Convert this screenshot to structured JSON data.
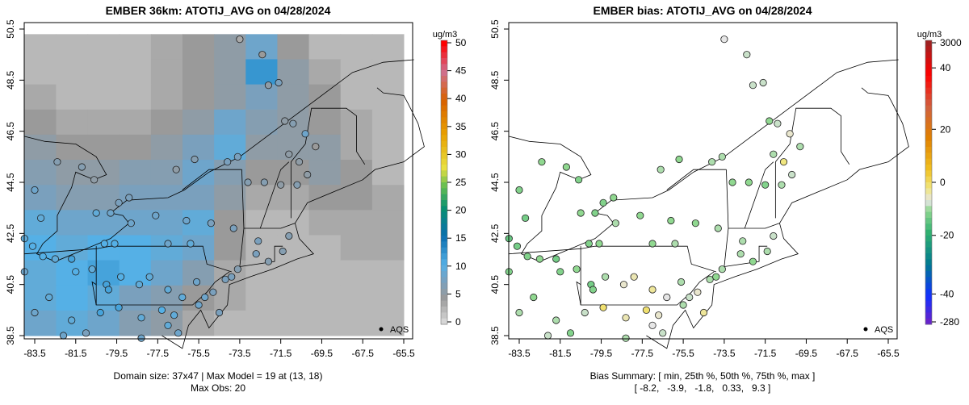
{
  "chart_data": [
    {
      "type": "heatmap",
      "title": "EMBER 36km: ATOTIJ_AVG on 04/28/2024",
      "colorbar": {
        "label": "ug/m3",
        "ticks": [
          "0",
          "5",
          "10",
          "15",
          "20",
          "25",
          "30",
          "35",
          "40",
          "45",
          "50"
        ],
        "range": [
          0,
          50
        ]
      },
      "x_ticks": [
        "-83.5",
        "-81.5",
        "-79.5",
        "-77.5",
        "-75.5",
        "-73.5",
        "-71.5",
        "-69.5",
        "-67.5",
        "-65.5"
      ],
      "y_ticks": [
        "38.5",
        "40.5",
        "42.5",
        "44.5",
        "46.5",
        "48.5",
        "50.5"
      ],
      "xlim": [
        -84,
        -65.2
      ],
      "ylim": [
        38.3,
        50.6
      ],
      "legend": {
        "label": "AQS",
        "placement": "bottom-right"
      },
      "footer": [
        "Domain size: 37x47 | Max Model = 19 at (13, 18)",
        "Max Obs: 20"
      ],
      "grid_lon_range": [
        -84,
        -65.5
      ],
      "grid_lat_range": [
        38.5,
        50.3
      ],
      "grid_values": [
        [
          3,
          3,
          3,
          3,
          4,
          5,
          6,
          9,
          5,
          3,
          3,
          3
        ],
        [
          3,
          3,
          3,
          3,
          4,
          5,
          6,
          13,
          6,
          4,
          3,
          3
        ],
        [
          4,
          3,
          3,
          3,
          4,
          5,
          6,
          8,
          6,
          5,
          3,
          3
        ],
        [
          5,
          4,
          4,
          4,
          5,
          6,
          9,
          7,
          6,
          5,
          4,
          3
        ],
        [
          6,
          5,
          5,
          5,
          6,
          8,
          10,
          6,
          6,
          6,
          4,
          3
        ],
        [
          7,
          6,
          6,
          7,
          7,
          9,
          7,
          5,
          5,
          6,
          5,
          3
        ],
        [
          8,
          7,
          7,
          8,
          8,
          8,
          6,
          4,
          4,
          5,
          5,
          4
        ],
        [
          10,
          9,
          9,
          9,
          9,
          10,
          5,
          3,
          3,
          4,
          4,
          4
        ],
        [
          11,
          10,
          11,
          11,
          10,
          9,
          5,
          3,
          3,
          3,
          4,
          4
        ],
        [
          10,
          11,
          12,
          11,
          9,
          7,
          4,
          3,
          3,
          3,
          3,
          3
        ],
        [
          10,
          11,
          10,
          8,
          7,
          5,
          4,
          3,
          3,
          3,
          3,
          3
        ],
        [
          9,
          10,
          9,
          7,
          6,
          4,
          3,
          3,
          3,
          3,
          3,
          3
        ]
      ]
    },
    {
      "type": "scatter",
      "title": "EMBER bias: ATOTIJ_AVG on 04/28/2024",
      "colorbar": {
        "label": "ug/m3",
        "ticks": [
          "3000",
          "40",
          "20",
          "0",
          "-20",
          "-40",
          "-280"
        ]
      },
      "x_ticks": [
        "-83.5",
        "-81.5",
        "-79.5",
        "-77.5",
        "-75.5",
        "-73.5",
        "-71.5",
        "-69.5",
        "-67.5",
        "-65.5"
      ],
      "y_ticks": [
        "38.5",
        "40.5",
        "42.5",
        "44.5",
        "46.5",
        "48.5",
        "50.5"
      ],
      "legend": {
        "label": "AQS",
        "placement": "bottom-right"
      },
      "footer": [
        "Bias Summary: [ min, 25th %, 50th %, 75th %, max ]",
        "[ -8.2,   -3.9,   -1.8,   0.33,   9.3 ]"
      ]
    }
  ],
  "stations": [
    [
      -73.5,
      50.1,
      4,
      0
    ],
    [
      -72.4,
      49.5,
      5,
      -1
    ],
    [
      -71.6,
      48.4,
      8,
      -1
    ],
    [
      -72.1,
      48.3,
      6,
      -1
    ],
    [
      -70.9,
      46.8,
      7,
      -1
    ],
    [
      -71.3,
      46.9,
      6,
      -3
    ],
    [
      -70.3,
      46.4,
      9,
      1
    ],
    [
      -71.1,
      45.6,
      6,
      -2
    ],
    [
      -70.6,
      45.3,
      6,
      4
    ],
    [
      -69.8,
      45.9,
      5,
      -2
    ],
    [
      -70.2,
      44.8,
      6,
      -1
    ],
    [
      -70.7,
      44.4,
      7,
      -2
    ],
    [
      -71.5,
      44.4,
      6,
      -4
    ],
    [
      -72.3,
      44.5,
      7,
      -3
    ],
    [
      -73.1,
      44.5,
      7,
      -3
    ],
    [
      -73.6,
      45.5,
      8,
      -2
    ],
    [
      -74.1,
      45.3,
      8,
      -2
    ],
    [
      -75.7,
      45.4,
      7,
      -3
    ],
    [
      -76.6,
      45.0,
      6,
      -2
    ],
    [
      -79.4,
      43.7,
      8,
      -4
    ],
    [
      -78.9,
      43.9,
      8,
      -3
    ],
    [
      -80.6,
      44.6,
      6,
      -4
    ],
    [
      -81.2,
      45.1,
      7,
      -3
    ],
    [
      -82.4,
      45.3,
      7,
      -3
    ],
    [
      -83.5,
      44.2,
      9,
      -4
    ],
    [
      -83.2,
      43.1,
      10,
      -5
    ],
    [
      -84.0,
      42.3,
      10,
      -6
    ],
    [
      -83.6,
      42.0,
      11,
      -5
    ],
    [
      -83.1,
      41.6,
      11,
      -4
    ],
    [
      -82.5,
      41.5,
      10,
      -3
    ],
    [
      -81.7,
      41.5,
      12,
      -5
    ],
    [
      -81.5,
      41.0,
      11,
      -4
    ],
    [
      -80.7,
      41.1,
      10,
      -3
    ],
    [
      -80.0,
      40.5,
      12,
      -5
    ],
    [
      -79.9,
      40.3,
      12,
      -4
    ],
    [
      -79.3,
      40.8,
      11,
      -2
    ],
    [
      -78.4,
      40.5,
      10,
      1
    ],
    [
      -77.9,
      40.8,
      10,
      2
    ],
    [
      -77.0,
      40.3,
      10,
      3
    ],
    [
      -76.3,
      40.0,
      10,
      0
    ],
    [
      -75.6,
      40.6,
      9,
      -2
    ],
    [
      -75.2,
      40.0,
      9,
      -1
    ],
    [
      -74.8,
      40.2,
      8,
      1
    ],
    [
      -74.2,
      40.7,
      8,
      -2
    ],
    [
      -73.9,
      40.8,
      8,
      -3
    ],
    [
      -73.6,
      41.1,
      7,
      -2
    ],
    [
      -72.7,
      41.7,
      8,
      -2
    ],
    [
      -72.1,
      41.4,
      7,
      -3
    ],
    [
      -71.4,
      41.8,
      7,
      -2
    ],
    [
      -71.1,
      42.4,
      7,
      -1
    ],
    [
      -72.6,
      42.2,
      8,
      -2
    ],
    [
      -73.8,
      42.7,
      8,
      -2
    ],
    [
      -74.9,
      42.9,
      8,
      -3
    ],
    [
      -76.1,
      43.0,
      9,
      -3
    ],
    [
      -77.6,
      43.2,
      9,
      -3
    ],
    [
      -78.8,
      42.9,
      9,
      -2
    ],
    [
      -79.6,
      42.1,
      11,
      -3
    ],
    [
      -80.1,
      42.1,
      11,
      -4
    ],
    [
      -75.9,
      42.1,
      10,
      -2
    ],
    [
      -77.0,
      42.1,
      9,
      -3
    ],
    [
      -76.7,
      39.3,
      10,
      1
    ],
    [
      -77.0,
      38.9,
      10,
      0
    ],
    [
      -77.3,
      39.5,
      11,
      5
    ],
    [
      -78.3,
      39.2,
      10,
      2
    ],
    [
      -79.4,
      39.6,
      12,
      5
    ],
    [
      -80.3,
      39.4,
      12,
      -1
    ],
    [
      -81.7,
      39.1,
      10,
      -2
    ],
    [
      -82.8,
      40.0,
      10,
      -3
    ],
    [
      -83.5,
      39.4,
      9,
      -2
    ],
    [
      -81.0,
      38.6,
      8,
      -4
    ],
    [
      -76.5,
      38.6,
      9,
      -1
    ],
    [
      -75.5,
      39.7,
      9,
      -2
    ],
    [
      -74.5,
      39.4,
      8,
      3
    ],
    [
      -78.3,
      38.4,
      9,
      -2
    ],
    [
      -82.1,
      38.5,
      9,
      -1
    ],
    [
      -84.0,
      41.0,
      9,
      -4
    ],
    [
      -80.5,
      43.3,
      10,
      -3
    ],
    [
      -79.8,
      43.3,
      9,
      -4
    ]
  ]
}
